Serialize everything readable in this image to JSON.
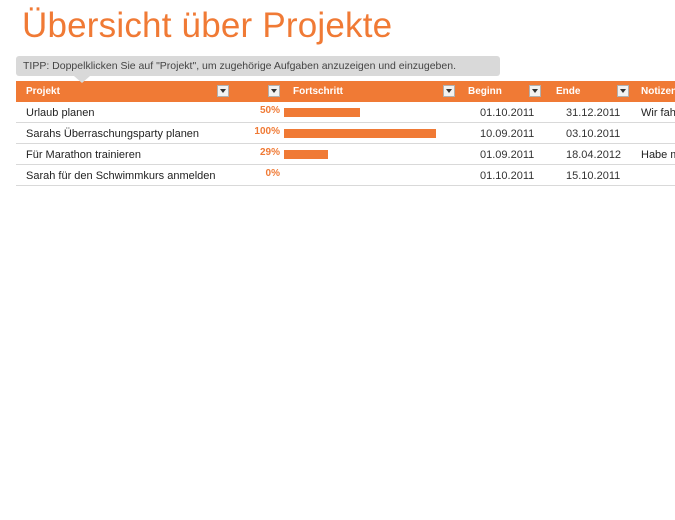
{
  "title": "Übersicht über Projekte",
  "tip": "TIPP: Doppelklicken Sie auf \"Projekt\", um zugehörige Aufgaben anzuzeigen und einzugeben.",
  "colors": {
    "accent": "#f07a35",
    "tip_bg": "#d9d9d9",
    "row_border": "#d9d9d9"
  },
  "table": {
    "headers": {
      "projekt": "Projekt",
      "fortschritt": "Fortschritt",
      "beginn": "Beginn",
      "ende": "Ende",
      "notizen": "Notizen"
    },
    "rows": [
      {
        "projekt": "Urlaub planen",
        "fortschritt_label": "50%",
        "fortschritt": 0.5,
        "beginn": "01.10.2011",
        "ende": "31.12.2011",
        "notizen": "Wir fahren"
      },
      {
        "projekt": "Sarahs Überraschungsparty planen",
        "fortschritt_label": "100%",
        "fortschritt": 1.0,
        "beginn": "10.09.2011",
        "ende": "03.10.2011",
        "notizen": ""
      },
      {
        "projekt": "Für Marathon trainieren",
        "fortschritt_label": "29%",
        "fortschritt": 0.29,
        "beginn": "01.09.2011",
        "ende": "18.04.2012",
        "notizen": "Habe mich"
      },
      {
        "projekt": "Sarah für den Schwimmkurs anmelden",
        "fortschritt_label": "0%",
        "fortschritt": 0.0,
        "beginn": "01.10.2011",
        "ende": "15.10.2011",
        "notizen": ""
      }
    ]
  }
}
